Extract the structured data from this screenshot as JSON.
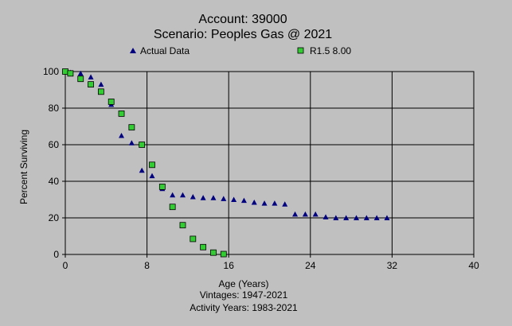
{
  "chart_data": {
    "type": "scatter",
    "title": "Account: 39000",
    "subtitle": "Scenario: Peoples Gas @ 2021",
    "xlabel": "Age (Years)",
    "ylabel": "Percent Surviving",
    "notes": [
      "Vintages: 1947-2021",
      "Activity Years: 1983-2021"
    ],
    "xlim": [
      0,
      40
    ],
    "ylim": [
      0,
      100
    ],
    "x_ticks": [
      0,
      8,
      16,
      24,
      32,
      40
    ],
    "y_ticks": [
      0,
      20,
      40,
      60,
      80,
      100
    ],
    "grid": true,
    "legend_position": "top",
    "series": [
      {
        "name": "Actual Data",
        "marker": "triangle",
        "color": "#000080",
        "points": [
          [
            0,
            100
          ],
          [
            0.5,
            99.5
          ],
          [
            1.5,
            99
          ],
          [
            2.5,
            97
          ],
          [
            3.5,
            93
          ],
          [
            4.5,
            82
          ],
          [
            5.5,
            65
          ],
          [
            6.5,
            61
          ],
          [
            7.5,
            46
          ],
          [
            8.5,
            43
          ],
          [
            9.5,
            36
          ],
          [
            10.5,
            32.5
          ],
          [
            11.5,
            32.5
          ],
          [
            12.5,
            31.5
          ],
          [
            13.5,
            31
          ],
          [
            14.5,
            31
          ],
          [
            15.5,
            30.5
          ],
          [
            16.5,
            30
          ],
          [
            17.5,
            29.5
          ],
          [
            18.5,
            28.5
          ],
          [
            19.5,
            28
          ],
          [
            20.5,
            28
          ],
          [
            21.5,
            27.5
          ],
          [
            22.5,
            22
          ],
          [
            23.5,
            22
          ],
          [
            24.5,
            22
          ],
          [
            25.5,
            20.5
          ],
          [
            26.5,
            20
          ],
          [
            27.5,
            20
          ],
          [
            28.5,
            20
          ],
          [
            29.5,
            20
          ],
          [
            30.5,
            20
          ],
          [
            31.5,
            20
          ]
        ]
      },
      {
        "name": "R1.5 8.00",
        "marker": "square",
        "color": "#33cc33",
        "points": [
          [
            0,
            100
          ],
          [
            0.5,
            99
          ],
          [
            1.5,
            96
          ],
          [
            2.5,
            93
          ],
          [
            3.5,
            89
          ],
          [
            4.5,
            83.5
          ],
          [
            5.5,
            77
          ],
          [
            6.5,
            69.5
          ],
          [
            7.5,
            60
          ],
          [
            8.5,
            49
          ],
          [
            9.5,
            37
          ],
          [
            10.5,
            26
          ],
          [
            11.5,
            16
          ],
          [
            12.5,
            8.5
          ],
          [
            13.5,
            4
          ],
          [
            14.5,
            1
          ],
          [
            15.5,
            0.2
          ]
        ]
      }
    ]
  }
}
